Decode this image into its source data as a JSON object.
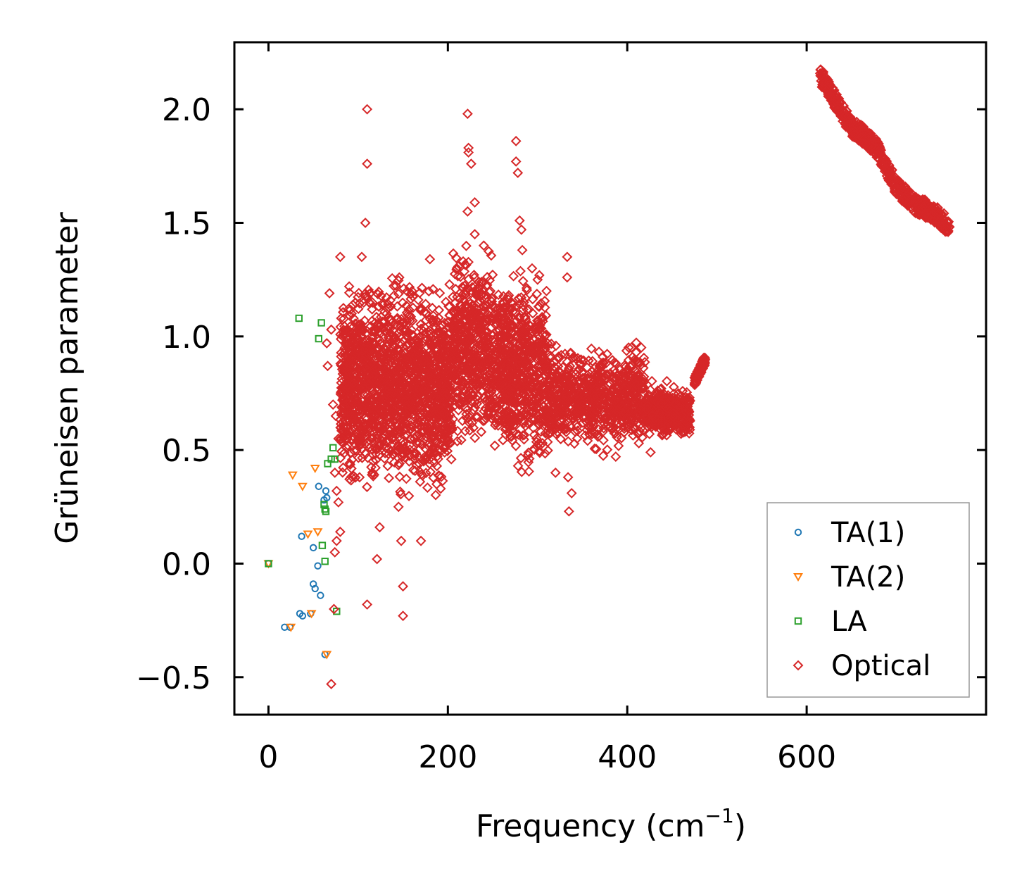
{
  "chart_data": {
    "type": "scatter",
    "title": "",
    "xlabel": "Frequency (cm",
    "xlabel_exp": "−1",
    "xlabel_close": ")",
    "ylabel": "Grüneisen parameter",
    "xlim": [
      -38,
      800
    ],
    "ylim": [
      -0.665,
      2.295
    ],
    "xticks": [
      0,
      200,
      400,
      600
    ],
    "xtick_labels": [
      "0",
      "200",
      "400",
      "600"
    ],
    "yticks": [
      -0.5,
      0.0,
      0.5,
      1.0,
      1.5,
      2.0
    ],
    "ytick_labels": [
      "−0.5",
      "0.0",
      "0.5",
      "1.0",
      "1.5",
      "2.0"
    ],
    "grid": false,
    "legend_position": "lower-right",
    "series": [
      {
        "name": "TA(1)",
        "marker": "circle",
        "color": "#1f77b4",
        "x": [
          0,
          18,
          24,
          35,
          38,
          37,
          47,
          50,
          50,
          52,
          55,
          58,
          56,
          62,
          64,
          65,
          63
        ],
        "y": [
          0.0,
          -0.28,
          -0.28,
          -0.22,
          -0.23,
          0.12,
          -0.22,
          0.07,
          -0.09,
          -0.11,
          -0.01,
          -0.14,
          0.34,
          0.28,
          0.32,
          0.29,
          -0.4
        ]
      },
      {
        "name": "TA(2)",
        "marker": "triangle-down",
        "color": "#ff7f0e",
        "x": [
          0,
          25,
          27,
          38,
          44,
          48,
          52,
          55,
          65
        ],
        "y": [
          0.0,
          -0.28,
          0.39,
          0.34,
          0.13,
          -0.22,
          0.42,
          0.14,
          -0.4
        ]
      },
      {
        "name": "LA",
        "marker": "square",
        "color": "#2ca02c",
        "x": [
          0,
          34,
          56,
          59,
          60,
          62,
          63,
          64,
          63,
          66,
          70,
          72,
          74,
          76
        ],
        "y": [
          0.0,
          1.08,
          0.99,
          1.06,
          0.08,
          0.26,
          0.24,
          0.23,
          0.01,
          0.44,
          0.46,
          0.51,
          0.46,
          -0.21
        ]
      },
      {
        "name": "Optical",
        "marker": "diamond",
        "color": "#d62728",
        "x": [
          110,
          110,
          108,
          104,
          80,
          68,
          70,
          65,
          66,
          72,
          75,
          78,
          74,
          76,
          78,
          80,
          76,
          74,
          73,
          70,
          110,
          121,
          124,
          145,
          148,
          150,
          150,
          170,
          192,
          222,
          223,
          223,
          226,
          222,
          230,
          276,
          276,
          278,
          280,
          282,
          283,
          333,
          333,
          334,
          335,
          320,
          338,
          426,
          230,
          210,
          180,
          160,
          240,
          300,
          310,
          200,
          150,
          100,
          90,
          120,
          140,
          190
        ],
        "y": [
          2.0,
          1.76,
          1.5,
          1.35,
          1.35,
          1.19,
          1.03,
          0.97,
          0.87,
          0.7,
          0.65,
          0.55,
          0.4,
          0.32,
          0.27,
          0.14,
          0.1,
          0.05,
          -0.2,
          -0.53,
          -0.18,
          0.02,
          0.16,
          0.25,
          0.1,
          -0.1,
          -0.23,
          0.1,
          0.33,
          1.98,
          1.83,
          1.81,
          1.76,
          1.55,
          1.59,
          1.86,
          1.77,
          1.72,
          1.51,
          1.47,
          1.38,
          1.35,
          1.26,
          0.38,
          0.23,
          0.4,
          0.31,
          0.49,
          1.45,
          1.3,
          1.34,
          1.2,
          1.4,
          1.25,
          1.2,
          0.55,
          0.8,
          0.6,
          1.22,
          0.5,
          1.18,
          0.58
        ]
      }
    ],
    "dense_regions": [
      {
        "series": "Optical",
        "x_range": [
          80,
          205
        ],
        "y_center": 0.78,
        "y_spread": 0.32,
        "count": 1700
      },
      {
        "series": "Optical",
        "x_range": [
          205,
          250
        ],
        "y_center": 0.95,
        "y_spread": 0.3,
        "count": 500
      },
      {
        "series": "Optical",
        "x_range": [
          252,
          310
        ],
        "y_center": 0.85,
        "y_spread": 0.3,
        "count": 700
      },
      {
        "series": "Optical",
        "x_range": [
          310,
          420
        ],
        "y_center": 0.73,
        "y_spread": 0.16,
        "count": 800
      },
      {
        "series": "Optical",
        "x_range": [
          420,
          470
        ],
        "y_center": 0.67,
        "y_spread": 0.08,
        "count": 400
      }
    ],
    "band_trend": {
      "series": "Optical",
      "x": [
        475,
        487
      ],
      "y": [
        0.8,
        0.9
      ]
    },
    "high_band": {
      "series": "Optical",
      "x": [
        615,
        630,
        650,
        665,
        680,
        700,
        720,
        740,
        760
      ],
      "y": [
        2.15,
        2.05,
        1.92,
        1.88,
        1.82,
        1.66,
        1.58,
        1.55,
        1.48
      ],
      "count": 600
    }
  }
}
